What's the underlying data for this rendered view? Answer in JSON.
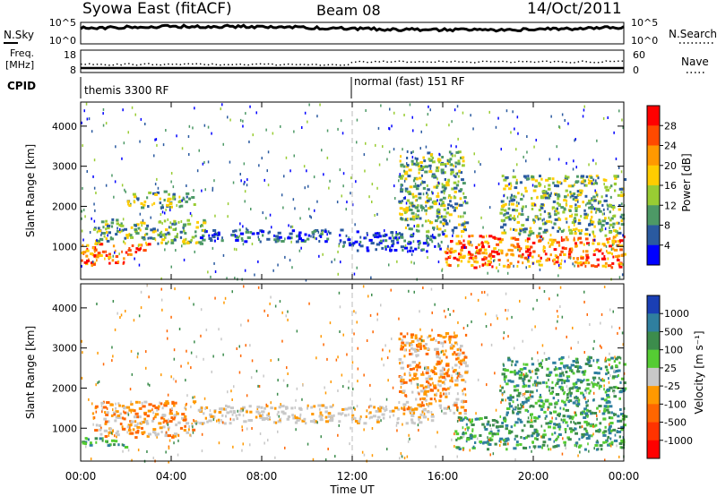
{
  "header": {
    "station": "Syowa East (fitACF)",
    "beam": "Beam 08",
    "date": "14/Oct/2011"
  },
  "noise_panel": {
    "left_label": "N.Sky",
    "right_label": "N.Search",
    "left_ticks": [
      "10^5",
      "10^0"
    ],
    "right_ticks": [
      "10^5",
      "10^0"
    ]
  },
  "freq_panel": {
    "left_label_1": "Freq.",
    "left_label_2": "[MHz]",
    "right_label": "Nave",
    "left_ticks": [
      "18",
      "8"
    ],
    "right_ticks": [
      "60",
      "0"
    ]
  },
  "cpid_panel": {
    "label": "CPID",
    "modes": [
      {
        "name": "themis 3300 RF",
        "start_hour": 0
      },
      {
        "name": "normal (fast) 151 RF",
        "start_hour": 12
      }
    ]
  },
  "x_axis": {
    "label": "Time UT",
    "ticks": [
      "00:00",
      "04:00",
      "08:00",
      "12:00",
      "16:00",
      "20:00",
      "00:00"
    ],
    "hours": [
      0,
      4,
      8,
      12,
      16,
      20,
      24
    ]
  },
  "power_panel": {
    "ylabel": "Slant Range [km]",
    "yticks": [
      "4000",
      "3000",
      "2000",
      "1000"
    ],
    "cbar_label": "Power [dB]",
    "cbar_ticks": [
      "28",
      "24",
      "20",
      "16",
      "12",
      "8",
      "4"
    ],
    "cbar_colors": [
      "#ff0000",
      "#ff4a00",
      "#ff9900",
      "#ffcc00",
      "#99cc33",
      "#4d9966",
      "#2a5aa0",
      "#0000ff"
    ]
  },
  "velocity_panel": {
    "ylabel": "Slant Range [km]",
    "yticks": [
      "4000",
      "3000",
      "2000",
      "1000"
    ],
    "cbar_label": "Velocity [m s⁻¹]",
    "cbar_ticks": [
      "1000",
      "500",
      "100",
      "25",
      "-25",
      "-100",
      "-500",
      "-1000"
    ],
    "cbar_colors": [
      "#1a3fb5",
      "#2f7f9f",
      "#3c8c4c",
      "#55cc33",
      "#c8c8c8",
      "#ff9900",
      "#ff6600",
      "#ff3300",
      "#ff0000"
    ]
  },
  "chart_data": {
    "type": "heatmap",
    "x_units": "hours UT",
    "xlim": [
      0,
      24
    ],
    "ylim_km": [
      180,
      4600
    ],
    "power_regions": [
      {
        "t0": 0.0,
        "t1": 2.0,
        "r0": 550,
        "r1": 800,
        "level": "high"
      },
      {
        "t0": 0.0,
        "t1": 3.0,
        "r0": 800,
        "r1": 1100,
        "level": "high"
      },
      {
        "t0": 0.5,
        "t1": 5.5,
        "r0": 1100,
        "r1": 1700,
        "level": "mid"
      },
      {
        "t0": 2.0,
        "t1": 5.0,
        "r0": 2000,
        "r1": 2400,
        "level": "mid"
      },
      {
        "t0": 5.0,
        "t1": 11.5,
        "r0": 1150,
        "r1": 1450,
        "level": "low"
      },
      {
        "t0": 11.5,
        "t1": 16.0,
        "r0": 900,
        "r1": 1400,
        "level": "low"
      },
      {
        "t0": 14.0,
        "t1": 17.0,
        "r0": 1400,
        "r1": 3400,
        "level": "mid"
      },
      {
        "t0": 16.0,
        "t1": 24.0,
        "r0": 500,
        "r1": 1300,
        "level": "high"
      },
      {
        "t0": 18.5,
        "t1": 24.0,
        "r0": 1300,
        "r1": 2800,
        "level": "mid"
      }
    ],
    "velocity_regions": [
      {
        "t0": 0.0,
        "t1": 2.0,
        "r0": 550,
        "r1": 800,
        "level": "green"
      },
      {
        "t0": 0.5,
        "t1": 5.0,
        "r0": 800,
        "r1": 1700,
        "level": "negative"
      },
      {
        "t0": 5.0,
        "t1": 15.5,
        "r0": 1150,
        "r1": 1600,
        "level": "near-zero"
      },
      {
        "t0": 14.0,
        "t1": 17.0,
        "r0": 1400,
        "r1": 3400,
        "level": "negative"
      },
      {
        "t0": 16.5,
        "t1": 24.0,
        "r0": 500,
        "r1": 1300,
        "level": "green"
      },
      {
        "t0": 18.5,
        "t1": 24.0,
        "r0": 1300,
        "r1": 2800,
        "level": "green"
      }
    ]
  }
}
